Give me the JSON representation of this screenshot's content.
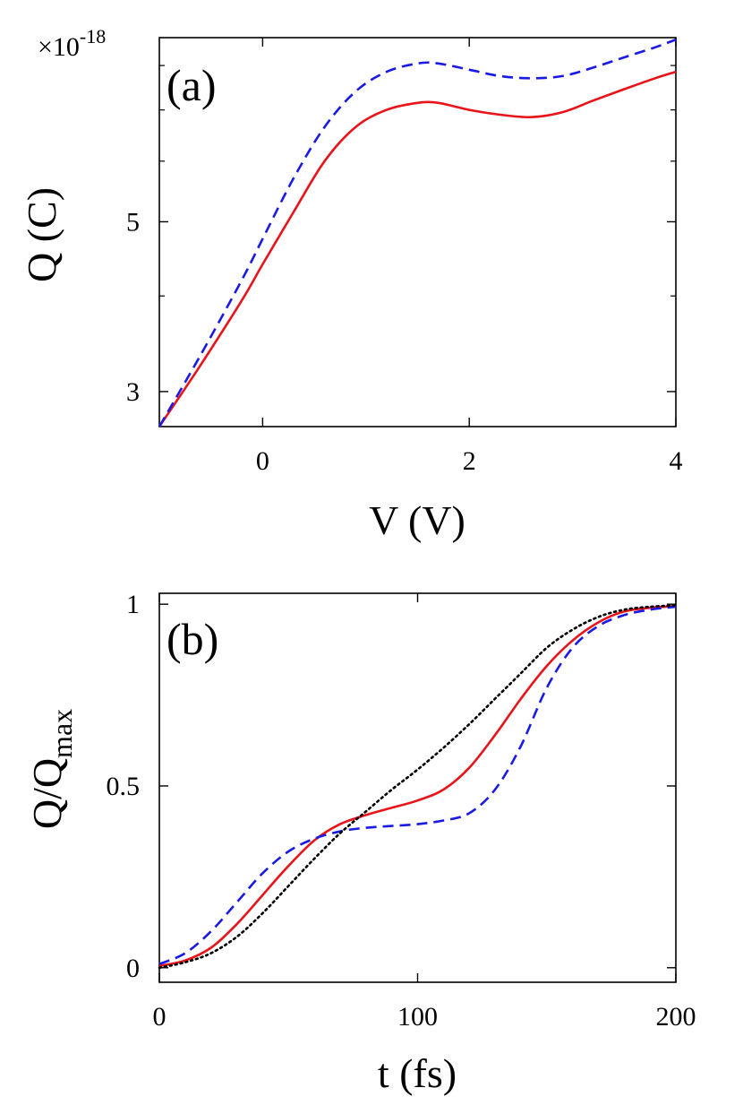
{
  "chart_data": [
    {
      "type": "line",
      "panel_label": "(a)",
      "xlabel": "V (V)",
      "ylabel": "Q (C)",
      "y_multiplier": "×10",
      "y_multiplier_exp": "-18",
      "xlim": [
        -1,
        4
      ],
      "ylim": [
        2.7,
        8.7
      ],
      "y_scale": "log",
      "xticks": [
        0,
        2,
        4
      ],
      "xtick_labels": [
        "0",
        "2",
        "4"
      ],
      "yticks": [
        3,
        5
      ],
      "ytick_labels": [
        "3",
        "5"
      ],
      "grid": false,
      "series": [
        {
          "color": "#e8141a",
          "dash": "solid",
          "x": [
            -1,
            -0.6,
            -0.2,
            0,
            0.3,
            0.6,
            0.9,
            1.2,
            1.5,
            1.7,
            2.0,
            2.3,
            2.6,
            2.9,
            3.2,
            3.5,
            3.8,
            4.0
          ],
          "y": [
            2.7,
            3.25,
            3.95,
            4.4,
            5.15,
            6.0,
            6.65,
            7.0,
            7.15,
            7.15,
            7.0,
            6.9,
            6.85,
            6.95,
            7.2,
            7.45,
            7.7,
            7.85
          ]
        },
        {
          "color": "#1a1ae6",
          "dash": "dashed",
          "x": [
            -1,
            -0.6,
            -0.2,
            0,
            0.3,
            0.6,
            0.9,
            1.2,
            1.5,
            1.7,
            2.0,
            2.3,
            2.6,
            2.9,
            3.2,
            3.5,
            3.8,
            4.0
          ],
          "y": [
            2.7,
            3.35,
            4.2,
            4.75,
            5.7,
            6.65,
            7.4,
            7.85,
            8.05,
            8.05,
            7.9,
            7.75,
            7.7,
            7.75,
            7.95,
            8.2,
            8.45,
            8.65
          ]
        }
      ]
    },
    {
      "type": "line",
      "panel_label": "(b)",
      "xlabel": "t (fs)",
      "ylabel_main": "Q/Q",
      "ylabel_sub": "max",
      "xlim": [
        0,
        200
      ],
      "ylim": [
        -0.04,
        1.03
      ],
      "xticks": [
        0,
        100,
        200
      ],
      "xtick_labels": [
        "0",
        "100",
        "200"
      ],
      "yticks": [
        0,
        0.5,
        1
      ],
      "ytick_labels": [
        "0",
        "0.5",
        "1"
      ],
      "grid": false,
      "series": [
        {
          "color": "#e8141a",
          "dash": "solid",
          "x": [
            0,
            10,
            20,
            30,
            40,
            50,
            60,
            70,
            80,
            90,
            100,
            110,
            120,
            130,
            140,
            150,
            160,
            170,
            180,
            190,
            200
          ],
          "y": [
            0.005,
            0.02,
            0.055,
            0.12,
            0.2,
            0.28,
            0.35,
            0.395,
            0.42,
            0.44,
            0.46,
            0.49,
            0.55,
            0.64,
            0.74,
            0.83,
            0.9,
            0.95,
            0.98,
            0.99,
            0.995
          ]
        },
        {
          "color": "#1a1ae6",
          "dash": "dashed",
          "x": [
            0,
            10,
            20,
            30,
            40,
            50,
            60,
            70,
            80,
            90,
            100,
            110,
            120,
            130,
            140,
            150,
            160,
            170,
            180,
            190,
            200
          ],
          "y": [
            0.01,
            0.04,
            0.1,
            0.18,
            0.26,
            0.32,
            0.355,
            0.375,
            0.385,
            0.39,
            0.395,
            0.405,
            0.425,
            0.49,
            0.61,
            0.77,
            0.88,
            0.94,
            0.97,
            0.985,
            0.993
          ]
        },
        {
          "color": "#000000",
          "dash": "dotted",
          "x": [
            0,
            10,
            20,
            30,
            40,
            50,
            60,
            70,
            80,
            90,
            100,
            110,
            120,
            130,
            140,
            150,
            160,
            170,
            180,
            190,
            200
          ],
          "y": [
            0.0,
            0.015,
            0.04,
            0.085,
            0.15,
            0.225,
            0.3,
            0.37,
            0.43,
            0.49,
            0.545,
            0.605,
            0.67,
            0.74,
            0.81,
            0.88,
            0.93,
            0.965,
            0.985,
            0.993,
            0.997
          ]
        }
      ]
    }
  ]
}
